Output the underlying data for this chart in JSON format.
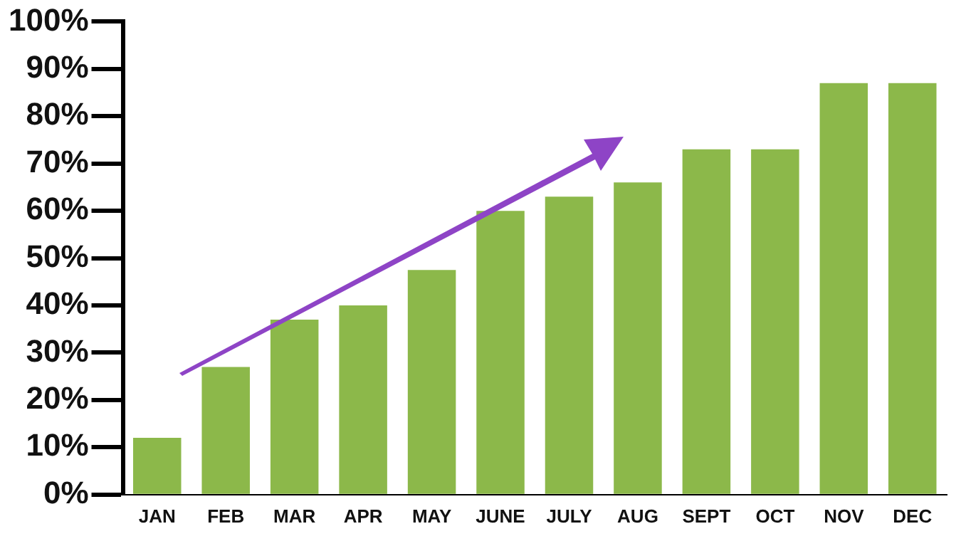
{
  "chart_data": {
    "type": "bar",
    "categories": [
      "JAN",
      "FEB",
      "MAR",
      "APR",
      "MAY",
      "JUNE",
      "JULY",
      "AUG",
      "SEPT",
      "OCT",
      "NOV",
      "DEC"
    ],
    "values": [
      12,
      27,
      37,
      40,
      47.5,
      60,
      63,
      66,
      73,
      73,
      87,
      87
    ],
    "color": "#8cb84a",
    "ylim": [
      0,
      100
    ],
    "yticks": [
      {
        "value": 0,
        "label": "0%"
      },
      {
        "value": 10,
        "label": "10%"
      },
      {
        "value": 20,
        "label": "20%"
      },
      {
        "value": 30,
        "label": "30%"
      },
      {
        "value": 40,
        "label": "40%"
      },
      {
        "value": 50,
        "label": "50%"
      },
      {
        "value": 60,
        "label": "60%"
      },
      {
        "value": 70,
        "label": "70%"
      },
      {
        "value": 80,
        "label": "80%"
      },
      {
        "value": 90,
        "label": "90%"
      },
      {
        "value": 100,
        "label": "100%"
      }
    ],
    "grid": false,
    "legend": false
  }
}
